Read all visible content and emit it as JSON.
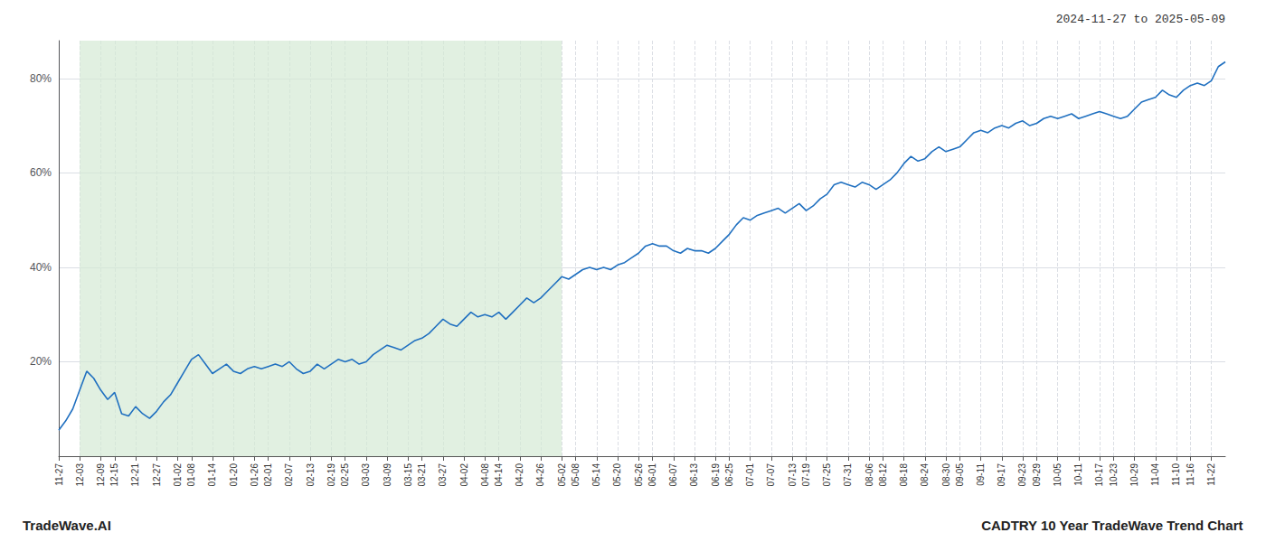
{
  "chart_data": {
    "type": "line",
    "title": "CADTRY 10 Year TradeWave Trend Chart",
    "subtitle": "2024-11-27 to 2025-05-09",
    "annotations": [
      "TradeWave.AI"
    ],
    "categories": [
      "11-27",
      null,
      null,
      "12-03",
      null,
      null,
      "12-09",
      null,
      "12-15",
      null,
      null,
      "12-21",
      null,
      null,
      "12-27",
      null,
      null,
      "01-02",
      null,
      "01-08",
      null,
      null,
      "01-14",
      null,
      null,
      "01-20",
      null,
      null,
      "01-26",
      null,
      "02-01",
      null,
      null,
      "02-07",
      null,
      null,
      "02-13",
      null,
      null,
      "02-19",
      null,
      "02-25",
      null,
      null,
      "03-03",
      null,
      null,
      "03-09",
      null,
      null,
      "03-15",
      null,
      "03-21",
      null,
      null,
      "03-27",
      null,
      null,
      "04-02",
      null,
      null,
      "04-08",
      null,
      "04-14",
      null,
      null,
      "04-20",
      null,
      null,
      "04-26",
      null,
      null,
      "05-02",
      null,
      "05-08",
      null,
      null,
      "05-14",
      null,
      null,
      "05-20",
      null,
      null,
      "05-26",
      null,
      "06-01",
      null,
      null,
      "06-07",
      null,
      null,
      "06-13",
      null,
      null,
      "06-19",
      null,
      "06-25",
      null,
      null,
      "07-01",
      null,
      null,
      "07-07",
      null,
      null,
      "07-13",
      null,
      "07-19",
      null,
      null,
      "07-25",
      null,
      null,
      "07-31",
      null,
      null,
      "08-06",
      null,
      "08-12",
      null,
      null,
      "08-18",
      null,
      null,
      "08-24",
      null,
      null,
      "08-30",
      null,
      "09-05",
      null,
      null,
      "09-11",
      null,
      null,
      "09-17",
      null,
      null,
      "09-23",
      null,
      "09-29",
      null,
      null,
      "10-05",
      null,
      null,
      "10-11",
      null,
      null,
      "10-17",
      null,
      "10-23",
      null,
      null,
      "10-29",
      null,
      null,
      "11-04",
      null,
      null,
      "11-10",
      null,
      "11-16",
      null,
      null,
      "11-22",
      null,
      null
    ],
    "values": [
      5.5,
      7.5,
      10.0,
      14.0,
      18.0,
      16.5,
      14.0,
      12.0,
      13.5,
      9.0,
      8.5,
      10.5,
      9.0,
      8.0,
      9.5,
      11.5,
      13.0,
      15.5,
      18.0,
      20.5,
      21.5,
      19.5,
      17.5,
      18.5,
      19.5,
      18.0,
      17.5,
      18.5,
      19.0,
      18.5,
      19.0,
      19.5,
      19.0,
      20.0,
      18.5,
      17.5,
      18.0,
      19.5,
      18.5,
      19.5,
      20.5,
      20.0,
      20.5,
      19.5,
      20.0,
      21.5,
      22.5,
      23.5,
      23.0,
      22.5,
      23.5,
      24.5,
      25.0,
      26.0,
      27.5,
      29.0,
      28.0,
      27.5,
      29.0,
      30.5,
      29.5,
      30.0,
      29.5,
      30.5,
      29.0,
      30.5,
      32.0,
      33.5,
      32.5,
      33.5,
      35.0,
      36.5,
      38.0,
      37.5,
      38.5,
      39.5,
      40.0,
      39.5,
      40.0,
      39.5,
      40.5,
      41.0,
      42.0,
      43.0,
      44.5,
      45.0,
      44.5,
      44.5,
      43.5,
      43.0,
      44.0,
      43.5,
      43.5,
      43.0,
      44.0,
      45.5,
      47.0,
      49.0,
      50.5,
      50.0,
      51.0,
      51.5,
      52.0,
      52.5,
      51.5,
      52.5,
      53.5,
      52.0,
      53.0,
      54.5,
      55.5,
      57.5,
      58.0,
      57.5,
      57.0,
      58.0,
      57.5,
      56.5,
      57.5,
      58.5,
      60.0,
      62.0,
      63.5,
      62.5,
      63.0,
      64.5,
      65.5,
      64.5,
      65.0,
      65.5,
      67.0,
      68.5,
      69.0,
      68.5,
      69.5,
      70.0,
      69.5,
      70.5,
      71.0,
      70.0,
      70.5,
      71.5,
      72.0,
      71.5,
      72.0,
      72.5,
      71.5,
      72.0,
      72.5,
      73.0,
      72.5,
      72.0,
      71.5,
      72.0,
      73.5,
      75.0,
      75.5,
      76.0,
      77.5,
      76.5,
      76.0,
      77.5,
      78.5,
      79.0,
      78.5,
      79.5,
      82.5,
      83.5
    ],
    "color": "#2070c0",
    "spans": [
      {
        "from": "12-03",
        "to": "05-02",
        "color": "#d4ead4"
      }
    ],
    "ylim": [
      0,
      88
    ],
    "yticks": [
      {
        "value": 20,
        "label": "20%"
      },
      {
        "value": 40,
        "label": "40%"
      },
      {
        "value": 60,
        "label": "60%"
      },
      {
        "value": 80,
        "label": "80%"
      }
    ],
    "grid": true
  }
}
